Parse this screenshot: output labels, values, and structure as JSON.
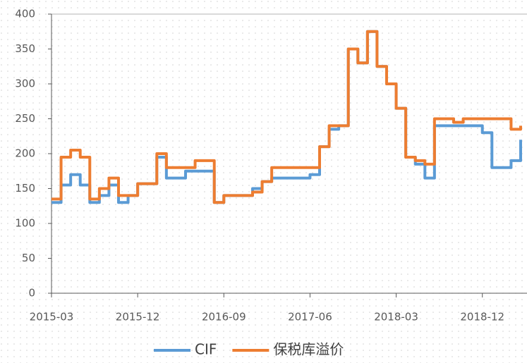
{
  "chart_data": {
    "type": "line",
    "step": true,
    "x": [
      "2015-03",
      "2015-04",
      "2015-05",
      "2015-06",
      "2015-07",
      "2015-08",
      "2015-09",
      "2015-10",
      "2015-11",
      "2015-12",
      "2016-01",
      "2016-02",
      "2016-03",
      "2016-04",
      "2016-05",
      "2016-06",
      "2016-07",
      "2016-08",
      "2016-09",
      "2016-10",
      "2016-11",
      "2016-12",
      "2017-01",
      "2017-02",
      "2017-03",
      "2017-04",
      "2017-05",
      "2017-06",
      "2017-07",
      "2017-08",
      "2017-09",
      "2017-10",
      "2017-11",
      "2017-12",
      "2018-01",
      "2018-02",
      "2018-03",
      "2018-04",
      "2018-05",
      "2018-06",
      "2018-07",
      "2018-08",
      "2018-09",
      "2018-10",
      "2018-11",
      "2018-12",
      "2019-01",
      "2019-02",
      "2019-03",
      "2019-04"
    ],
    "series": [
      {
        "name": "CIF",
        "color": "#5b9bd5",
        "values": [
          130,
          155,
          170,
          155,
          130,
          140,
          155,
          130,
          140,
          157,
          157,
          195,
          165,
          165,
          175,
          175,
          175,
          130,
          140,
          140,
          140,
          150,
          160,
          165,
          165,
          165,
          165,
          170,
          210,
          235,
          240,
          350,
          330,
          375,
          325,
          300,
          265,
          195,
          185,
          165,
          240,
          240,
          240,
          240,
          240,
          230,
          180,
          180,
          190,
          220
        ]
      },
      {
        "name": "保税库溢价",
        "color": "#ed7d31",
        "values": [
          135,
          195,
          205,
          195,
          135,
          150,
          165,
          140,
          140,
          157,
          157,
          200,
          180,
          180,
          180,
          190,
          190,
          130,
          140,
          140,
          140,
          145,
          160,
          180,
          180,
          180,
          180,
          180,
          210,
          240,
          240,
          350,
          330,
          375,
          325,
          300,
          265,
          195,
          190,
          185,
          250,
          250,
          245,
          250,
          250,
          250,
          250,
          250,
          235,
          240
        ]
      }
    ],
    "xlim": [
      "2015-03",
      "2019-04"
    ],
    "xticks": [
      "2015-03",
      "2015-12",
      "2016-09",
      "2017-06",
      "2018-03",
      "2018-12"
    ],
    "ylim": [
      0,
      400
    ],
    "yticks": [
      0,
      50,
      100,
      150,
      200,
      250,
      300,
      350,
      400
    ],
    "legend": "bottom"
  }
}
